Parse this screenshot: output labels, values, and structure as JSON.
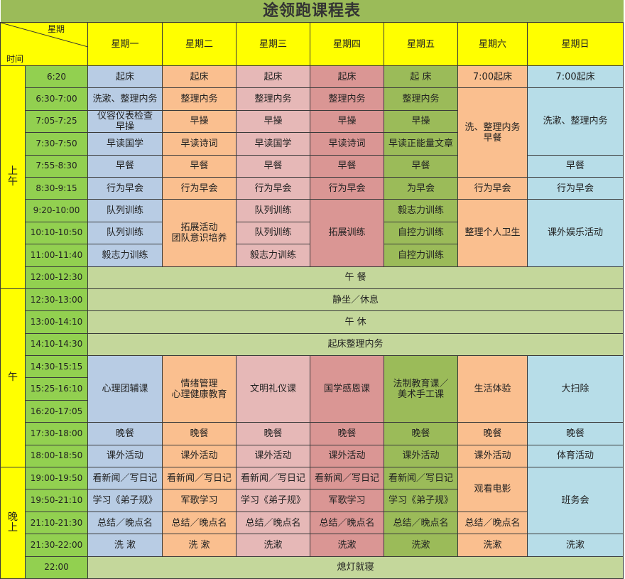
{
  "title": "途领跑课程表",
  "corner": {
    "top_label": "星期",
    "bottom_label": "时间"
  },
  "days": [
    "星期一",
    "星期二",
    "星期三",
    "星期四",
    "星期五",
    "星期六",
    "星期日"
  ],
  "colors": {
    "title_bg": "#9bbb59",
    "header_bg": "#ffff00",
    "time_bg": "#92d050",
    "full_row_bg": "#c4d79b",
    "day_bg": [
      "#b8cce4",
      "#fabf8f",
      "#e6b8b7",
      "#da9694",
      "#9bbb59",
      "#fabf8f",
      "#b7dde8"
    ]
  },
  "periods": [
    {
      "label": "上\n午",
      "rows": 10
    },
    {
      "label": "午",
      "rows": 8
    },
    {
      "label": "晚\n上",
      "rows": 5
    }
  ],
  "rows": [
    {
      "time": "6:20",
      "cells": [
        {
          "d": 0,
          "t": "起床"
        },
        {
          "d": 1,
          "t": "起床"
        },
        {
          "d": 2,
          "t": "起床"
        },
        {
          "d": 3,
          "t": "起床"
        },
        {
          "d": 4,
          "t": "起  床"
        },
        {
          "d": 5,
          "t": "7:00起床"
        },
        {
          "d": 6,
          "t": "7:00起床"
        }
      ]
    },
    {
      "time": "6:30-7:00",
      "cells": [
        {
          "d": 0,
          "t": "洗漱、整理内务"
        },
        {
          "d": 1,
          "t": "整理内务"
        },
        {
          "d": 2,
          "t": "整理内务"
        },
        {
          "d": 3,
          "t": "整理内务"
        },
        {
          "d": 4,
          "t": "整理内务"
        },
        {
          "d": 5,
          "t": "洗、整理内务\n早餐",
          "rs": 4
        },
        {
          "d": 6,
          "t": "洗漱、整理内务",
          "rs": 3
        }
      ]
    },
    {
      "time": "7:05-7:25",
      "cells": [
        {
          "d": 0,
          "t": "仪容仪表检查\n早操"
        },
        {
          "d": 1,
          "t": "早操"
        },
        {
          "d": 2,
          "t": "早操"
        },
        {
          "d": 3,
          "t": "早操"
        },
        {
          "d": 4,
          "t": "早操"
        }
      ]
    },
    {
      "time": "7:30-7:50",
      "cells": [
        {
          "d": 0,
          "t": "早读国学"
        },
        {
          "d": 1,
          "t": "早读诗词"
        },
        {
          "d": 2,
          "t": "早读国学"
        },
        {
          "d": 3,
          "t": "早读诗词"
        },
        {
          "d": 4,
          "t": "早读正能量文章"
        }
      ]
    },
    {
      "time": "7:55-8:30",
      "cells": [
        {
          "d": 0,
          "t": "早餐"
        },
        {
          "d": 1,
          "t": "早餐"
        },
        {
          "d": 2,
          "t": "早餐"
        },
        {
          "d": 3,
          "t": "早餐"
        },
        {
          "d": 4,
          "t": "早餐"
        },
        {
          "d": 6,
          "t": "早餐"
        }
      ]
    },
    {
      "time": "8:30-9:15",
      "cells": [
        {
          "d": 0,
          "t": "行为早会"
        },
        {
          "d": 1,
          "t": "行为早会"
        },
        {
          "d": 2,
          "t": "行为早会"
        },
        {
          "d": 3,
          "t": "行为早会"
        },
        {
          "d": 4,
          "t": "为早会"
        },
        {
          "d": 5,
          "t": "行为早会"
        },
        {
          "d": 6,
          "t": "行为早会"
        }
      ]
    },
    {
      "time": "9:20-10:00",
      "cells": [
        {
          "d": 0,
          "t": "队列训练"
        },
        {
          "d": 1,
          "t": "拓展活动\n团队意识培养",
          "rs": 3
        },
        {
          "d": 2,
          "t": "队列训练"
        },
        {
          "d": 3,
          "t": "拓展训练",
          "rs": 3
        },
        {
          "d": 4,
          "t": "毅志力训练"
        },
        {
          "d": 5,
          "t": "整理个人卫生",
          "rs": 3
        },
        {
          "d": 6,
          "t": "课外娱乐活动",
          "rs": 3
        }
      ]
    },
    {
      "time": "10:10-10:50",
      "cells": [
        {
          "d": 0,
          "t": "队列训练"
        },
        {
          "d": 2,
          "t": "队列训练"
        },
        {
          "d": 4,
          "t": "自控力训练"
        }
      ]
    },
    {
      "time": "11:00-11:40",
      "cells": [
        {
          "d": 0,
          "t": "毅志力训练"
        },
        {
          "d": 2,
          "t": "毅志力训练"
        },
        {
          "d": 4,
          "t": "自控力训练"
        }
      ]
    },
    {
      "time": "12:00-12:30",
      "full": "午  餐"
    },
    {
      "time": "12:30-13:00",
      "full": "静坐／休息"
    },
    {
      "time": "13:00-14:10",
      "full": "午  休"
    },
    {
      "time": "14:10-14:30",
      "full": "起床整理内务"
    },
    {
      "time": "14:30-15:15",
      "cells": [
        {
          "d": 0,
          "t": "心理团辅课",
          "rs": 3
        },
        {
          "d": 1,
          "t": "情绪管理\n心理健康教育",
          "rs": 3
        },
        {
          "d": 2,
          "t": "文明礼仪课",
          "rs": 3
        },
        {
          "d": 3,
          "t": "国学感恩课",
          "rs": 3
        },
        {
          "d": 4,
          "t": "法制教育课／\n美术手工课",
          "rs": 3
        },
        {
          "d": 5,
          "t": "生活体验",
          "rs": 3
        },
        {
          "d": 6,
          "t": "大扫除",
          "rs": 3
        }
      ]
    },
    {
      "time": "15:25-16:10",
      "cells": []
    },
    {
      "time": "16:20-17:05",
      "cells": []
    },
    {
      "time": "17:30-18:00",
      "cells": [
        {
          "d": 0,
          "t": "晚餐"
        },
        {
          "d": 1,
          "t": "晚餐"
        },
        {
          "d": 2,
          "t": "晚餐"
        },
        {
          "d": 3,
          "t": "晚餐"
        },
        {
          "d": 4,
          "t": "晚餐"
        },
        {
          "d": 5,
          "t": "晚餐"
        },
        {
          "d": 6,
          "t": "晚餐"
        }
      ]
    },
    {
      "time": "18:00-18:50",
      "cells": [
        {
          "d": 0,
          "t": "课外活动"
        },
        {
          "d": 1,
          "t": "课外活动"
        },
        {
          "d": 2,
          "t": "课外活动"
        },
        {
          "d": 3,
          "t": "课外活动"
        },
        {
          "d": 4,
          "t": "课外活动"
        },
        {
          "d": 5,
          "t": "课外活动"
        },
        {
          "d": 6,
          "t": "体育活动"
        }
      ]
    },
    {
      "time": "19:00-19:50",
      "cells": [
        {
          "d": 0,
          "t": "看新闻／写日记"
        },
        {
          "d": 1,
          "t": "看新闻／写日记"
        },
        {
          "d": 2,
          "t": "看新闻／写日记"
        },
        {
          "d": 3,
          "t": "看新闻／写日记"
        },
        {
          "d": 4,
          "t": "看新闻／写日记"
        },
        {
          "d": 5,
          "t": "观看电影",
          "rs": 2
        },
        {
          "d": 6,
          "t": "班务会",
          "rs": 3
        }
      ]
    },
    {
      "time": "19:50-21:10",
      "cells": [
        {
          "d": 0,
          "t": "学习《弟子规》"
        },
        {
          "d": 1,
          "t": "军歌学习"
        },
        {
          "d": 2,
          "t": "学习《弟子规》"
        },
        {
          "d": 3,
          "t": "军歌学习"
        },
        {
          "d": 4,
          "t": "学习《弟子规》"
        }
      ]
    },
    {
      "time": "21:10-21:30",
      "cells": [
        {
          "d": 0,
          "t": "总结／晚点名"
        },
        {
          "d": 1,
          "t": "总结／晚点名"
        },
        {
          "d": 2,
          "t": "总结／晚点名"
        },
        {
          "d": 3,
          "t": "总结／晚点名"
        },
        {
          "d": 4,
          "t": "总结／晚点名"
        },
        {
          "d": 5,
          "t": "总结／晚点名"
        }
      ]
    },
    {
      "time": "21:30-22:00",
      "cells": [
        {
          "d": 0,
          "t": "洗  漱"
        },
        {
          "d": 1,
          "t": "洗  漱"
        },
        {
          "d": 2,
          "t": "洗漱"
        },
        {
          "d": 3,
          "t": "洗漱"
        },
        {
          "d": 4,
          "t": "洗漱"
        },
        {
          "d": 5,
          "t": "洗漱"
        },
        {
          "d": 6,
          "t": "洗漱"
        }
      ]
    },
    {
      "time": "22:00",
      "full": "熄灯就寝"
    }
  ]
}
